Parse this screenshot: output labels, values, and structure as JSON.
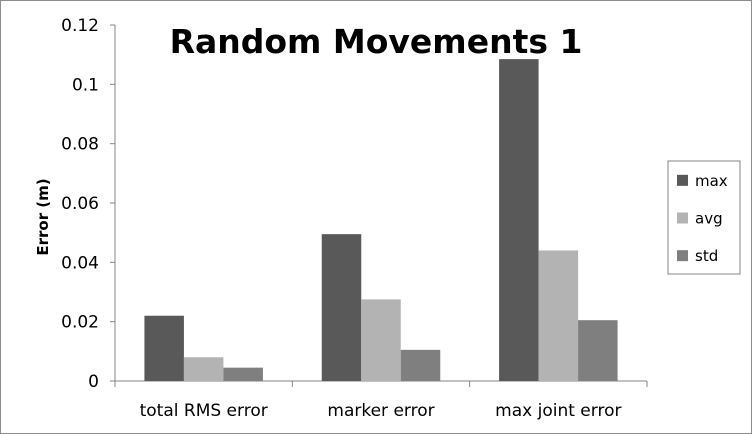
{
  "chart_data": {
    "type": "bar",
    "title": "Random Movements 1",
    "xlabel": "",
    "ylabel": "Error (m)",
    "ylim": [
      0,
      0.12
    ],
    "yticks": [
      "0",
      "0.02",
      "0.04",
      "0.06",
      "0.08",
      "0.1",
      "0.12"
    ],
    "categories": [
      "total RMS error",
      "marker error",
      "max joint error"
    ],
    "series": [
      {
        "name": "max",
        "color": "#595959",
        "values": [
          0.022,
          0.0495,
          0.1085
        ]
      },
      {
        "name": "avg",
        "color": "#b3b3b3",
        "values": [
          0.008,
          0.0275,
          0.044
        ]
      },
      {
        "name": "std",
        "color": "#7f7f7f",
        "values": [
          0.0045,
          0.0105,
          0.0205
        ]
      }
    ],
    "grid": false,
    "legend": "right"
  }
}
